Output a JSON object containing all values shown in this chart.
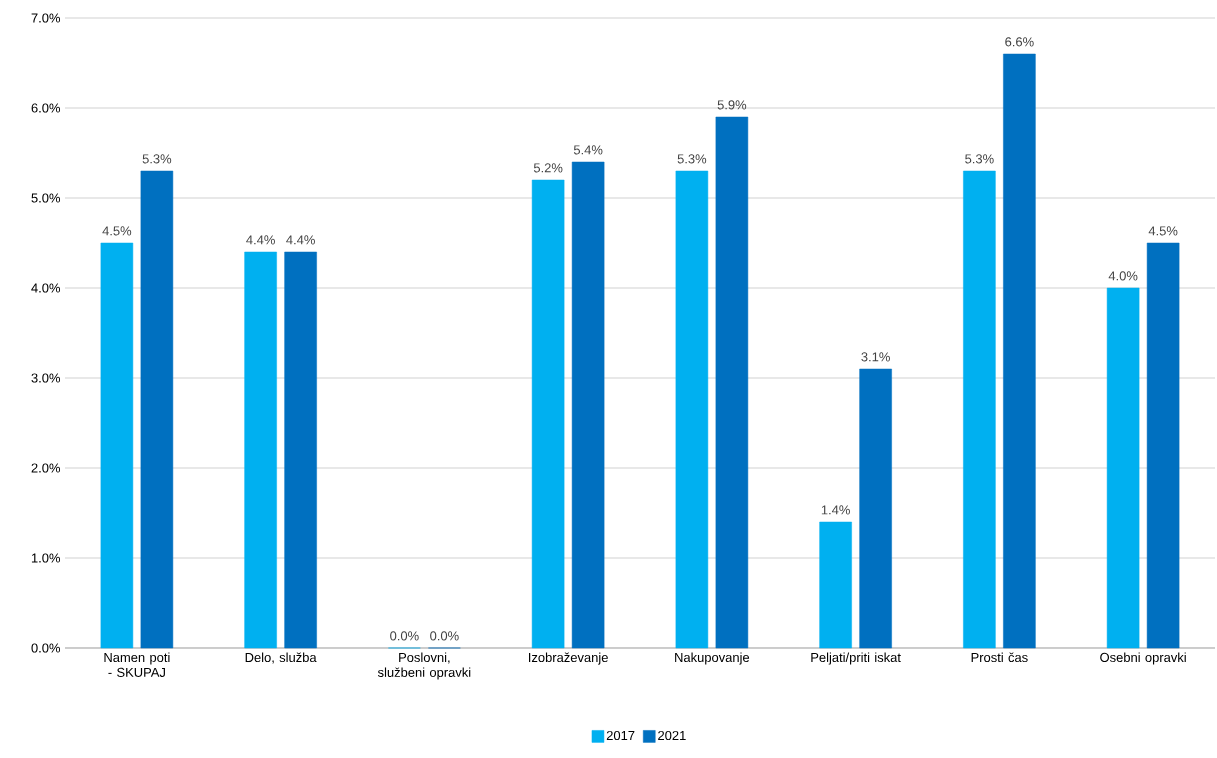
{
  "chart_data": {
    "type": "bar",
    "categories": [
      "Namen poti - SKUPAJ",
      "Delo, služba",
      "Poslovni, službeni opravki",
      "Izobraževanje",
      "Nakupovanje",
      "Peljati/priti iskat",
      "Prosti čas",
      "Osebni opravki"
    ],
    "series": [
      {
        "name": "2017",
        "color": "#00b0f0",
        "values": [
          4.5,
          4.4,
          0.0,
          5.2,
          5.3,
          1.4,
          5.3,
          4.0
        ],
        "value_labels": [
          "4.5%",
          "4.4%",
          "0.0%",
          "5.2%",
          "5.3%",
          "1.4%",
          "5.3%",
          "4.0%"
        ]
      },
      {
        "name": "2021",
        "color": "#0070c0",
        "values": [
          5.3,
          4.4,
          0.0,
          5.4,
          5.9,
          3.1,
          6.6,
          4.5
        ],
        "value_labels": [
          "5.3%",
          "4.4%",
          "0.0%",
          "5.4%",
          "5.9%",
          "3.1%",
          "6.6%",
          "4.5%"
        ]
      }
    ],
    "ylim": [
      0,
      7
    ],
    "yticks": [
      {
        "value": 0,
        "label": "0.0%"
      },
      {
        "value": 1,
        "label": "1.0%"
      },
      {
        "value": 2,
        "label": "2.0%"
      },
      {
        "value": 3,
        "label": "3.0%"
      },
      {
        "value": 4,
        "label": "4.0%"
      },
      {
        "value": 5,
        "label": "5.0%"
      },
      {
        "value": 6,
        "label": "6.0%"
      },
      {
        "value": 7,
        "label": "7.0%"
      }
    ],
    "grid": "y",
    "legend": "bottom"
  }
}
